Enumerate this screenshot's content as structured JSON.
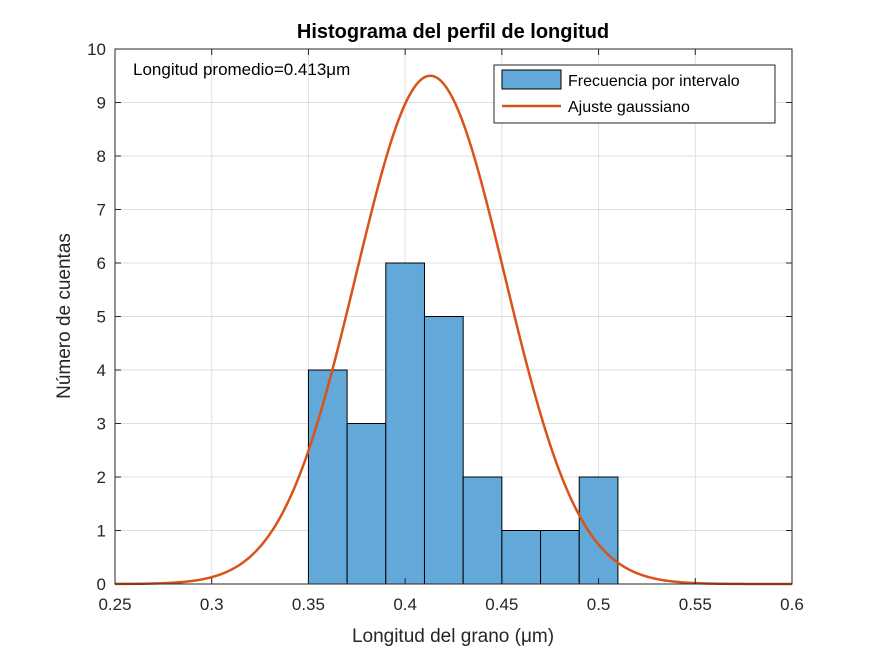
{
  "chart_data": {
    "type": "bar",
    "title": "Histograma del perfil de longitud",
    "xlabel": "Longitud del grano (μm)",
    "ylabel": "Número de cuentas",
    "xlim": [
      0.25,
      0.6
    ],
    "ylim": [
      0,
      10
    ],
    "xticks": [
      "0.25",
      "0.3",
      "0.35",
      "0.4",
      "0.45",
      "0.5",
      "0.55",
      "0.6"
    ],
    "yticks": [
      "0",
      "1",
      "2",
      "3",
      "4",
      "5",
      "6",
      "7",
      "8",
      "9",
      "10"
    ],
    "grid": true,
    "legend_position": "top-right",
    "annotation": "Longitud promedio=0.413μm",
    "bins": {
      "edges": [
        0.35,
        0.37,
        0.39,
        0.41,
        0.43,
        0.45,
        0.47,
        0.49,
        0.51
      ],
      "counts": [
        4,
        3,
        6,
        5,
        2,
        1,
        1,
        2
      ]
    },
    "series": [
      {
        "name": "Frecuencia por intervalo",
        "kind": "histogram",
        "color": "#62a8d8"
      },
      {
        "name": "Ajuste gaussiano",
        "kind": "line",
        "color": "#d95319",
        "mean": 0.413,
        "amplitude": 9.5,
        "sigma": 0.0385
      }
    ]
  }
}
